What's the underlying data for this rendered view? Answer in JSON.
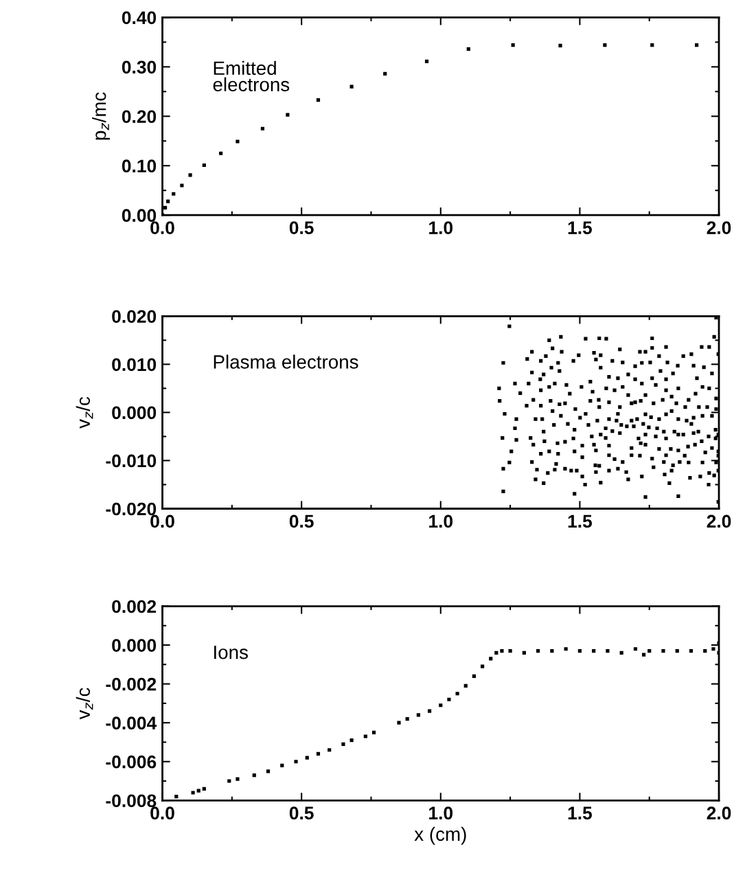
{
  "chart_data": [
    {
      "type": "scatter",
      "ylabel": "p$_{z}$/mc",
      "annotations": [
        "Emitted\nelectrons"
      ],
      "marker": "square",
      "grid": false,
      "legend": false,
      "tick_labels": true,
      "xlim": [
        0.0,
        2.0
      ],
      "xticks": [
        {
          "value": 0,
          "label": "0.0"
        },
        {
          "value": 0.5,
          "label": "0.5"
        },
        {
          "value": 1,
          "label": "1.0"
        },
        {
          "value": 1.5,
          "label": "1.5"
        },
        {
          "value": 2,
          "label": "2.0"
        }
      ],
      "ylim": [
        0.0,
        0.4
      ],
      "yticks": [
        {
          "value": 0,
          "label": "0.00"
        },
        {
          "value": 0.1,
          "label": "0.10"
        },
        {
          "value": 0.2,
          "label": "0.20"
        },
        {
          "value": 0.3,
          "label": "0.30"
        },
        {
          "value": 0.4,
          "label": "0.40"
        }
      ],
      "series": [
        {
          "color": "#000000",
          "x": [
            0.0,
            0.01,
            0.02,
            0.04,
            0.07,
            0.1,
            0.15,
            0.21,
            0.27,
            0.36,
            0.45,
            0.56,
            0.68,
            0.8,
            0.95,
            1.1,
            1.26,
            1.43,
            1.59,
            1.76,
            1.92
          ],
          "values": [
            0.0,
            0.015,
            0.028,
            0.043,
            0.06,
            0.081,
            0.101,
            0.125,
            0.149,
            0.175,
            0.203,
            0.233,
            0.26,
            0.286,
            0.311,
            0.336,
            0.344,
            0.343,
            0.344,
            0.344,
            0.344
          ]
        }
      ]
    },
    {
      "type": "scatter",
      "ylabel": "v$_{z}$/c",
      "annotations": [
        "Plasma electrons"
      ],
      "marker": "square",
      "grid": false,
      "legend": false,
      "xlim": [
        0.0,
        2.0
      ],
      "xticks": [
        {
          "value": 0,
          "label": "0.0"
        },
        {
          "value": 0.5,
          "label": "0.5"
        },
        {
          "value": 1,
          "label": "1.0"
        },
        {
          "value": 1.5,
          "label": "1.5"
        },
        {
          "value": 2,
          "label": "2.0"
        }
      ],
      "ylim": [
        -0.02,
        0.02
      ],
      "yticks": [
        {
          "value": -0.02,
          "label": "-0.020"
        },
        {
          "value": -0.01,
          "label": "-0.010"
        },
        {
          "value": 0,
          "label": "0.000"
        },
        {
          "value": 0.01,
          "label": "0.010"
        },
        {
          "value": 0.02,
          "label": "0.020"
        }
      ],
      "series": [
        {
          "color": "#000000",
          "x": [
            1.247,
            1.225,
            1.21,
            1.212,
            1.23,
            1.222,
            1.254,
            1.247,
            1.225,
            1.225,
            1.267,
            1.286,
            1.309,
            1.272,
            1.267,
            1.272,
            1.311,
            1.328,
            1.328,
            1.316,
            1.333,
            1.341,
            1.323,
            1.333,
            1.328,
            1.341,
            1.346,
            1.36,
            1.378,
            1.37,
            1.358,
            1.36,
            1.36,
            1.365,
            1.37,
            1.373,
            1.36,
            1.37,
            1.39,
            1.402,
            1.398,
            1.39,
            1.395,
            1.402,
            1.407,
            1.39,
            1.385,
            1.432,
            1.435,
            1.422,
            1.427,
            1.41,
            1.427,
            1.432,
            1.42,
            1.422,
            1.415,
            1.41,
            1.452,
            1.464,
            1.447,
            1.457,
            1.481,
            1.477,
            1.447,
            1.447,
            1.469,
            1.484,
            1.481,
            1.489,
            1.477,
            1.496,
            1.506,
            1.501,
            1.509,
            1.509,
            1.509,
            1.519,
            1.481,
            1.521,
            1.538,
            1.546,
            1.538,
            1.521,
            1.531,
            1.543,
            1.551,
            1.558,
            1.556,
            1.558,
            1.575,
            1.57,
            1.551,
            1.575,
            1.558,
            1.575,
            1.568,
            1.563,
            1.575,
            1.99,
            1.595,
            1.76,
            1.644,
            1.716,
            1.736,
            1.76,
            1.81,
            1.617,
            1.654,
            1.699,
            1.723,
            1.753,
            1.785,
            1.815,
            1.852,
            1.872,
            1.901,
            1.938,
            1.983,
            1.965,
            1.998,
            1.605,
            1.637,
            1.674,
            1.699,
            1.723,
            1.76,
            1.79,
            1.81,
            1.835,
            1.909,
            1.946,
            1.975,
            1.921,
            1.595,
            1.625,
            1.654,
            1.674,
            1.699,
            1.736,
            1.773,
            1.81,
            1.854,
            1.891,
            1.916,
            1.941,
            1.99,
            1.965,
            1.57,
            1.605,
            1.644,
            1.686,
            1.719,
            1.765,
            1.798,
            1.83,
            1.847,
            1.879,
            1.928,
            1.958,
            1.99,
            1.605,
            1.637,
            1.632,
            1.686,
            1.706,
            1.736,
            1.756,
            1.785,
            1.81,
            1.83,
            1.854,
            1.884,
            1.909,
            1.941,
            1.975,
            1.593,
            1.617,
            1.649,
            1.669,
            1.694,
            1.728,
            1.748,
            1.778,
            1.802,
            1.84,
            1.872,
            1.901,
            1.926,
            1.963,
            1.988,
            1.998,
            1.593,
            1.644,
            1.711,
            1.736,
            1.773,
            1.81,
            1.854,
            1.909,
            1.938,
            1.988,
            1.605,
            1.686,
            1.719,
            1.736,
            1.785,
            1.827,
            1.854,
            1.889,
            1.914,
            1.975,
            1.998,
            1.605,
            1.686,
            1.716,
            1.81,
            1.877,
            1.951,
            1.998,
            1.625,
            1.654,
            1.76,
            1.802,
            1.859,
            1.891,
            1.941,
            1.99,
            1.57,
            1.605,
            1.637,
            1.667,
            1.765,
            1.835,
            1.83,
            1.998,
            1.674,
            1.723,
            1.805,
            1.896,
            1.933,
            1.965,
            1.983,
            1.822,
            1.963,
            1.736,
            1.854,
            1.998
          ],
          "values": [
            0.0179,
            0.0103,
            0.005,
            0.0024,
            -0.0003,
            -0.0053,
            -0.0081,
            -0.0104,
            -0.0117,
            -0.0164,
            0.006,
            0.004,
            0.0014,
            -0.0014,
            -0.0033,
            -0.0057,
            0.0111,
            0.0126,
            0.0083,
            0.006,
            0.0026,
            -0.0014,
            -0.0053,
            -0.0067,
            -0.0103,
            -0.0139,
            -0.0119,
            0.0107,
            0.0117,
            0.0079,
            0.0069,
            0.0046,
            0.0014,
            -0.0014,
            -0.004,
            -0.006,
            -0.0086,
            -0.0147,
            0.015,
            0.0133,
            0.0093,
            0.0053,
            0.0024,
            0.0003,
            -0.0026,
            -0.0081,
            -0.0126,
            0.0157,
            0.0126,
            0.0103,
            0.0086,
            0.006,
            0.0017,
            -0.0007,
            -0.0064,
            -0.0086,
            -0.0107,
            -0.0119,
            0.0057,
            0.0039,
            0.0019,
            -0.0024,
            -0.0036,
            -0.0054,
            -0.0061,
            -0.0117,
            -0.0121,
            0.0007,
            -0.0081,
            -0.0121,
            0.0107,
            0.0119,
            0.0053,
            -0.0011,
            -0.0069,
            -0.0093,
            -0.0133,
            -0.015,
            -0.0169,
            0.0153,
            0.0064,
            0.0043,
            0.0024,
            -0.0003,
            -0.0026,
            -0.005,
            -0.0067,
            -0.0079,
            -0.011,
            -0.0124,
            -0.0146,
            0.0154,
            0.0124,
            0.0119,
            0.011,
            0.0093,
            0.0026,
            -0.0017,
            -0.0046,
            0.0197,
            0.0153,
            0.0154,
            0.0131,
            0.0126,
            0.0126,
            0.0134,
            0.0136,
            0.0107,
            0.0104,
            0.0096,
            0.0103,
            0.0104,
            0.0117,
            0.0104,
            0.0097,
            0.0117,
            0.0121,
            0.0136,
            0.0157,
            0.0136,
            0.0121,
            0.0074,
            0.0071,
            0.0079,
            0.0069,
            0.006,
            0.0071,
            0.0086,
            0.0069,
            0.0081,
            0.0097,
            0.0094,
            0.0081,
            0.0071,
            0.005,
            0.0046,
            0.0053,
            0.0036,
            0.0021,
            0.0036,
            0.0057,
            0.0046,
            0.005,
            0.0026,
            0.0039,
            0.0053,
            0.0029,
            0.005,
            0.0011,
            0.0021,
            0.0011,
            0.0019,
            0.0024,
            0.0019,
            0.0026,
            0.0033,
            0.0019,
            0.0011,
            0.0011,
            0.0011,
            0.0007,
            -0.0014,
            -0.0003,
            -0.0017,
            -0.0017,
            -0.0014,
            -0.0004,
            -0.001,
            -0.0014,
            -0.0004,
            0.0003,
            -0.0014,
            -0.0017,
            -0.0011,
            -0.0007,
            -0.0007,
            -0.0033,
            -0.0039,
            -0.0026,
            -0.0029,
            -0.0029,
            -0.0024,
            -0.0031,
            -0.0033,
            -0.004,
            -0.004,
            -0.0046,
            -0.0024,
            -0.004,
            -0.005,
            -0.0036,
            -0.0046,
            -0.0053,
            -0.0043,
            -0.0054,
            -0.0046,
            -0.005,
            -0.0054,
            -0.0046,
            -0.0043,
            -0.006,
            -0.0054,
            -0.0069,
            -0.0074,
            -0.0064,
            -0.0067,
            -0.0076,
            -0.0076,
            -0.0079,
            -0.0071,
            -0.0067,
            -0.0074,
            -0.0081,
            -0.0089,
            -0.0089,
            -0.009,
            -0.0089,
            -0.009,
            -0.0083,
            -0.009,
            -0.0097,
            -0.0103,
            -0.0096,
            -0.0103,
            -0.0103,
            -0.0104,
            -0.0104,
            -0.0104,
            -0.0111,
            -0.0121,
            -0.0117,
            -0.0124,
            -0.0114,
            -0.011,
            -0.0121,
            -0.0121,
            -0.0139,
            -0.0133,
            -0.0129,
            -0.0136,
            -0.0133,
            -0.0126,
            -0.0131,
            -0.0147,
            -0.015,
            -0.0176,
            -0.0174,
            -0.0186
          ]
        }
      ]
    },
    {
      "type": "scatter",
      "xlabel": "x (cm)",
      "ylabel": "v$_{z}$/c",
      "annotations": [
        "Ions"
      ],
      "marker": "square",
      "grid": false,
      "legend": false,
      "xlim": [
        0.0,
        2.0
      ],
      "xticks": [
        {
          "value": 0,
          "label": "0.0"
        },
        {
          "value": 0.5,
          "label": "0.5"
        },
        {
          "value": 1,
          "label": "1.0"
        },
        {
          "value": 1.5,
          "label": "1.5"
        },
        {
          "value": 2,
          "label": "2.0"
        }
      ],
      "ylim": [
        -0.008,
        0.002
      ],
      "yticks": [
        {
          "value": -0.008,
          "label": "-0.008"
        },
        {
          "value": -0.006,
          "label": "-0.006"
        },
        {
          "value": -0.004,
          "label": "-0.004"
        },
        {
          "value": -0.002,
          "label": "-0.002"
        },
        {
          "value": 0,
          "label": "0.000"
        },
        {
          "value": 0.002,
          "label": "0.002"
        }
      ],
      "series": [
        {
          "color": "#000000",
          "x": [
            0.05,
            0.11,
            0.13,
            0.15,
            0.24,
            0.27,
            0.33,
            0.38,
            0.43,
            0.48,
            0.52,
            0.56,
            0.6,
            0.65,
            0.68,
            0.73,
            0.76,
            0.85,
            0.88,
            0.92,
            0.96,
            1.0,
            1.03,
            1.06,
            1.09,
            1.12,
            1.15,
            1.18,
            1.2,
            1.22,
            1.25,
            1.3,
            1.35,
            1.4,
            1.45,
            1.5,
            1.55,
            1.6,
            1.65,
            1.7,
            1.73,
            1.75,
            1.8,
            1.85,
            1.9,
            1.95,
            1.98,
            2.0,
            2.0
          ],
          "values": [
            -0.0078,
            -0.0076,
            -0.0075,
            -0.0074,
            -0.007,
            -0.0069,
            -0.0067,
            -0.0065,
            -0.0062,
            -0.006,
            -0.0058,
            -0.0056,
            -0.0054,
            -0.0051,
            -0.0049,
            -0.0047,
            -0.0045,
            -0.004,
            -0.0038,
            -0.0036,
            -0.0034,
            -0.0031,
            -0.0028,
            -0.0025,
            -0.0021,
            -0.0016,
            -0.0011,
            -0.0007,
            -0.0004,
            -0.0003,
            -0.0003,
            -0.0004,
            -0.0003,
            -0.0003,
            -0.0002,
            -0.0003,
            -0.0003,
            -0.0003,
            -0.0004,
            -0.0002,
            -0.0005,
            -0.0003,
            -0.0003,
            -0.0003,
            -0.0003,
            -0.0003,
            -0.0002,
            0.0001,
            -0.0004
          ]
        }
      ]
    }
  ]
}
